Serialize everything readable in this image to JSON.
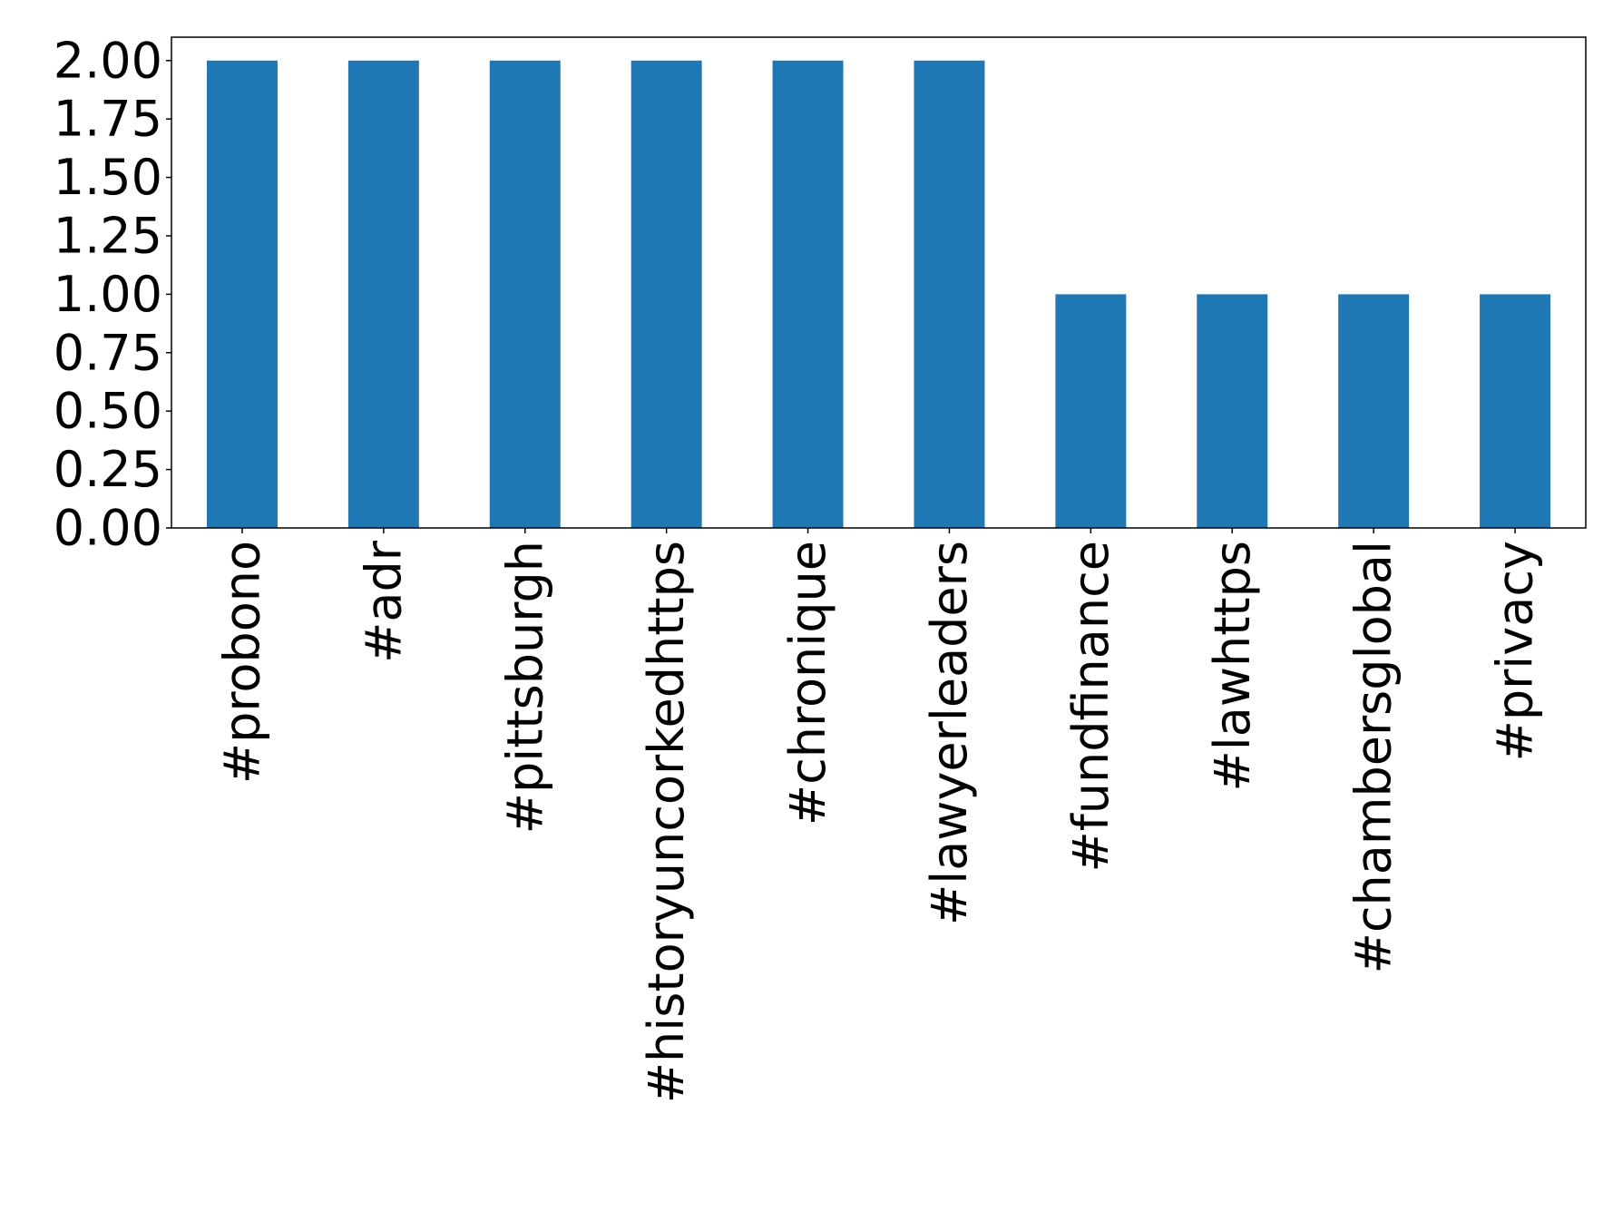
{
  "chart_data": {
    "type": "bar",
    "categories": [
      "#probono",
      "#adr",
      "#pittsburgh",
      "#historyuncorkedhttps",
      "#chronique",
      "#lawyerleaders",
      "#fundfinance",
      "#lawhttps",
      "#chambersglobal",
      "#privacy"
    ],
    "values": [
      2,
      2,
      2,
      2,
      2,
      2,
      1,
      1,
      1,
      1
    ],
    "color": "#1f77b4",
    "ylim": [
      0,
      2.1
    ],
    "yticks": [
      {
        "value": 0,
        "label": "0.00"
      },
      {
        "value": 0.25,
        "label": "0.25"
      },
      {
        "value": 0.5,
        "label": "0.50"
      },
      {
        "value": 0.75,
        "label": "0.75"
      },
      {
        "value": 1,
        "label": "1.00"
      },
      {
        "value": 1.25,
        "label": "1.25"
      },
      {
        "value": 1.5,
        "label": "1.50"
      },
      {
        "value": 1.75,
        "label": "1.75"
      },
      {
        "value": 2,
        "label": "2.00"
      }
    ],
    "grid": false
  }
}
